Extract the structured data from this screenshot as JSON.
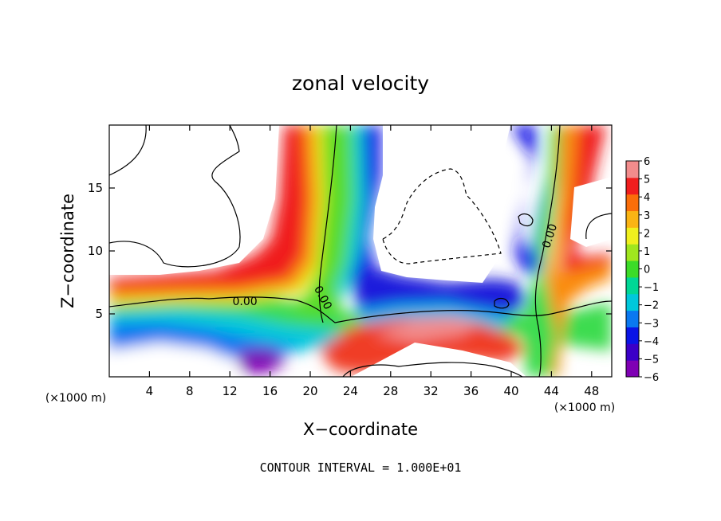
{
  "chart_data": {
    "type": "heatmap",
    "title": "zonal velocity",
    "xlabel": "X−coordinate",
    "ylabel": "Z−coordinate",
    "x_unit": "(×1000 m)",
    "z_unit": "(×1000 m)",
    "xlim": [
      0,
      50
    ],
    "ylim": [
      0,
      20
    ],
    "x_ticks": [
      4,
      8,
      12,
      16,
      20,
      24,
      28,
      32,
      36,
      40,
      44,
      48
    ],
    "y_ticks": [
      5,
      10,
      15
    ],
    "x_tick_labels": [
      "4",
      "8",
      "12",
      "16",
      "20",
      "24",
      "28",
      "32",
      "36",
      "40",
      "44",
      "48"
    ],
    "y_tick_labels": [
      "5",
      "10",
      "15"
    ],
    "colorbar": {
      "min": -6,
      "max": 6,
      "ticks": [
        6,
        5,
        4,
        3,
        2,
        1,
        0,
        -1,
        -2,
        -3,
        -4,
        -5,
        -6
      ],
      "tick_labels": [
        "6",
        "5",
        "4",
        "3",
        "2",
        "1",
        "0",
        "−1",
        "−2",
        "−3",
        "−4",
        "−5",
        "−6"
      ],
      "colors": [
        "#7f00b4",
        "#3b00c8",
        "#0a14e6",
        "#0a78f0",
        "#00c8dc",
        "#00d796",
        "#3cdc28",
        "#a0e61e",
        "#f0f01e",
        "#fab414",
        "#fa6e0a",
        "#f01e1e",
        "#f28c8c"
      ]
    },
    "contour_labels": [
      {
        "text": "0.00",
        "x": 13.5,
        "z": 6.0,
        "angle": 0
      },
      {
        "text": "0.00",
        "x": 21.3,
        "z": 6.3,
        "angle": 62
      },
      {
        "text": "0.00",
        "x": 43.8,
        "z": 11.2,
        "angle": -72
      }
    ],
    "note": "CONTOUR INTERVAL = 1.000E+01"
  }
}
